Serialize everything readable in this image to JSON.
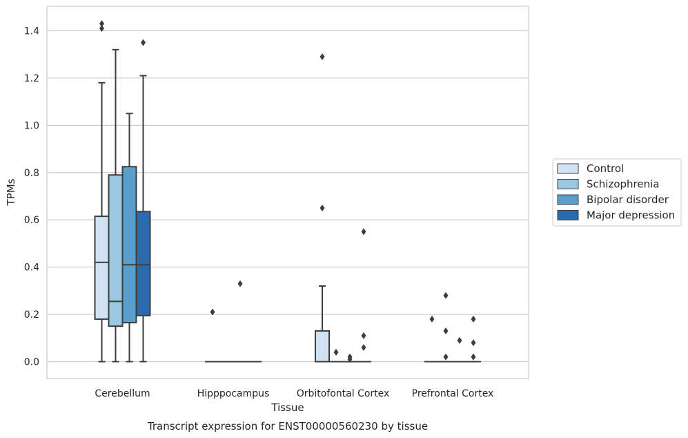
{
  "chart_data": {
    "type": "box",
    "title": "Transcript expression for ENST00000560230 by tissue",
    "xlabel": "Tissue",
    "ylabel": "TPMs",
    "ylim": [
      -0.07,
      1.5
    ],
    "yticks": [
      "0.0",
      "0.2",
      "0.4",
      "0.6",
      "0.8",
      "1.0",
      "1.2",
      "1.4"
    ],
    "grid": true,
    "legend_position": "right",
    "categories": [
      "Cerebellum",
      "Hipppocampus",
      "Orbitofontal Cortex",
      "Prefrontal Cortex"
    ],
    "series": [
      {
        "name": "Control",
        "color": "#d1e2f2",
        "boxes": [
          {
            "whislo": 0.0,
            "q1": 0.18,
            "med": 0.42,
            "q3": 0.615,
            "whishi": 1.18,
            "fliers": [
              1.43,
              1.41
            ]
          },
          {
            "whislo": 0.0,
            "q1": 0.0,
            "med": 0.0,
            "q3": 0.0,
            "whishi": 0.0,
            "fliers": [
              0.21
            ]
          },
          {
            "whislo": 0.0,
            "q1": 0.0,
            "med": 0.0,
            "q3": 0.13,
            "whishi": 0.32,
            "fliers": [
              1.29,
              0.65
            ]
          },
          {
            "whislo": 0.0,
            "q1": 0.0,
            "med": 0.0,
            "q3": 0.0,
            "whishi": 0.0,
            "fliers": [
              0.18
            ]
          }
        ]
      },
      {
        "name": "Schizophrenia",
        "color": "#9ac8e0",
        "boxes": [
          {
            "whislo": 0.0,
            "q1": 0.15,
            "med": 0.255,
            "q3": 0.79,
            "whishi": 1.32,
            "fliers": []
          },
          {
            "whislo": 0.0,
            "q1": 0.0,
            "med": 0.0,
            "q3": 0.0,
            "whishi": 0.0,
            "fliers": []
          },
          {
            "whislo": 0.0,
            "q1": 0.0,
            "med": 0.0,
            "q3": 0.0,
            "whishi": 0.0,
            "fliers": [
              0.04
            ]
          },
          {
            "whislo": 0.0,
            "q1": 0.0,
            "med": 0.0,
            "q3": 0.0,
            "whishi": 0.0,
            "fliers": [
              0.28,
              0.13,
              0.02
            ]
          }
        ]
      },
      {
        "name": "Bipolar disorder",
        "color": "#5a9fcc",
        "boxes": [
          {
            "whislo": 0.0,
            "q1": 0.165,
            "med": 0.41,
            "q3": 0.825,
            "whishi": 1.05,
            "fliers": []
          },
          {
            "whislo": 0.0,
            "q1": 0.0,
            "med": 0.0,
            "q3": 0.0,
            "whishi": 0.0,
            "fliers": [
              0.33
            ]
          },
          {
            "whislo": 0.0,
            "q1": 0.0,
            "med": 0.0,
            "q3": 0.0,
            "whishi": 0.0,
            "fliers": [
              0.02,
              0.01
            ]
          },
          {
            "whislo": 0.0,
            "q1": 0.0,
            "med": 0.0,
            "q3": 0.0,
            "whishi": 0.0,
            "fliers": [
              0.09
            ]
          }
        ]
      },
      {
        "name": "Major depression",
        "color": "#2a6aad",
        "boxes": [
          {
            "whislo": 0.0,
            "q1": 0.195,
            "med": 0.41,
            "q3": 0.635,
            "whishi": 1.21,
            "fliers": [
              1.35
            ]
          },
          {
            "whislo": 0.0,
            "q1": 0.0,
            "med": 0.0,
            "q3": 0.0,
            "whishi": 0.0,
            "fliers": []
          },
          {
            "whislo": 0.0,
            "q1": 0.0,
            "med": 0.0,
            "q3": 0.0,
            "whishi": 0.0,
            "fliers": [
              0.55,
              0.11,
              0.06
            ]
          },
          {
            "whislo": 0.0,
            "q1": 0.0,
            "med": 0.0,
            "q3": 0.0,
            "whishi": 0.0,
            "fliers": [
              0.18,
              0.08,
              0.02
            ]
          }
        ]
      }
    ]
  }
}
